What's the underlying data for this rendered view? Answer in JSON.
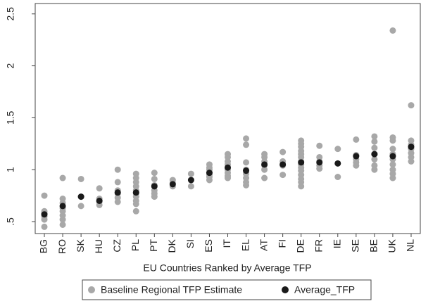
{
  "chart_data": {
    "type": "scatter",
    "xlabel": "EU Countries Ranked by Average TFP",
    "categories": [
      "BG",
      "RO",
      "SK",
      "HU",
      "CZ",
      "PL",
      "PT",
      "DK",
      "SI",
      "ES",
      "IT",
      "EL",
      "AT",
      "FI",
      "DE",
      "FR",
      "IE",
      "SE",
      "BE",
      "UK",
      "NL"
    ],
    "series": [
      {
        "name": "Baseline Regional TFP Estimate",
        "color": "#a8a8a8",
        "values": [
          [
            0.75,
            0.6,
            0.58,
            0.55,
            0.52,
            0.45
          ],
          [
            0.92,
            0.72,
            0.68,
            0.63,
            0.6,
            0.56,
            0.52,
            0.47
          ],
          [
            0.91,
            0.74,
            0.65
          ],
          [
            0.82,
            0.72,
            0.69,
            0.66
          ],
          [
            1.0,
            0.88,
            0.8,
            0.77,
            0.73,
            0.69
          ],
          [
            0.96,
            0.92,
            0.88,
            0.84,
            0.8,
            0.77,
            0.74,
            0.7,
            0.67,
            0.6
          ],
          [
            0.97,
            0.91,
            0.85,
            0.8,
            0.77,
            0.74
          ],
          [
            0.9,
            0.87,
            0.84
          ],
          [
            0.96,
            0.84
          ],
          [
            1.05,
            1.02,
            1.0,
            0.97,
            0.95,
            0.93,
            0.9
          ],
          [
            1.15,
            1.12,
            1.08,
            1.05,
            1.02,
            1.0,
            0.97,
            0.94,
            0.92
          ],
          [
            1.3,
            1.24,
            1.07,
            1.0,
            0.96,
            0.92,
            0.88,
            0.85
          ],
          [
            1.15,
            1.12,
            1.08,
            1.04,
            1.0,
            0.92
          ],
          [
            1.17,
            1.08,
            1.04,
            0.95
          ],
          [
            1.28,
            1.25,
            1.22,
            1.18,
            1.15,
            1.12,
            1.08,
            1.05,
            1.02,
            0.99,
            0.95,
            0.91,
            0.88,
            0.84
          ],
          [
            1.23,
            1.12,
            1.08,
            1.04,
            1.01
          ],
          [
            1.2,
            0.93
          ],
          [
            1.29,
            1.14,
            1.1,
            1.07,
            1.04
          ],
          [
            1.32,
            1.27,
            1.21,
            1.15,
            1.1,
            1.04,
            1.0
          ],
          [
            2.34,
            1.31,
            1.28,
            1.2,
            1.15,
            1.1,
            1.05,
            1.0,
            0.96,
            0.92
          ],
          [
            1.62,
            1.28,
            1.24,
            1.2,
            1.16,
            1.12,
            1.08
          ]
        ]
      },
      {
        "name": "Average_TFP",
        "color": "#1a1a1a",
        "values": [
          0.57,
          0.65,
          0.74,
          0.7,
          0.78,
          0.78,
          0.84,
          0.86,
          0.9,
          0.97,
          1.02,
          0.99,
          1.05,
          1.05,
          1.07,
          1.07,
          1.06,
          1.13,
          1.15,
          1.13,
          1.22
        ]
      }
    ],
    "ylim": [
      0.385,
      2.6
    ],
    "yticks": [
      {
        "value": 0.5,
        "label": ".5"
      },
      1,
      1.5,
      2,
      2.5
    ],
    "grid": false
  }
}
